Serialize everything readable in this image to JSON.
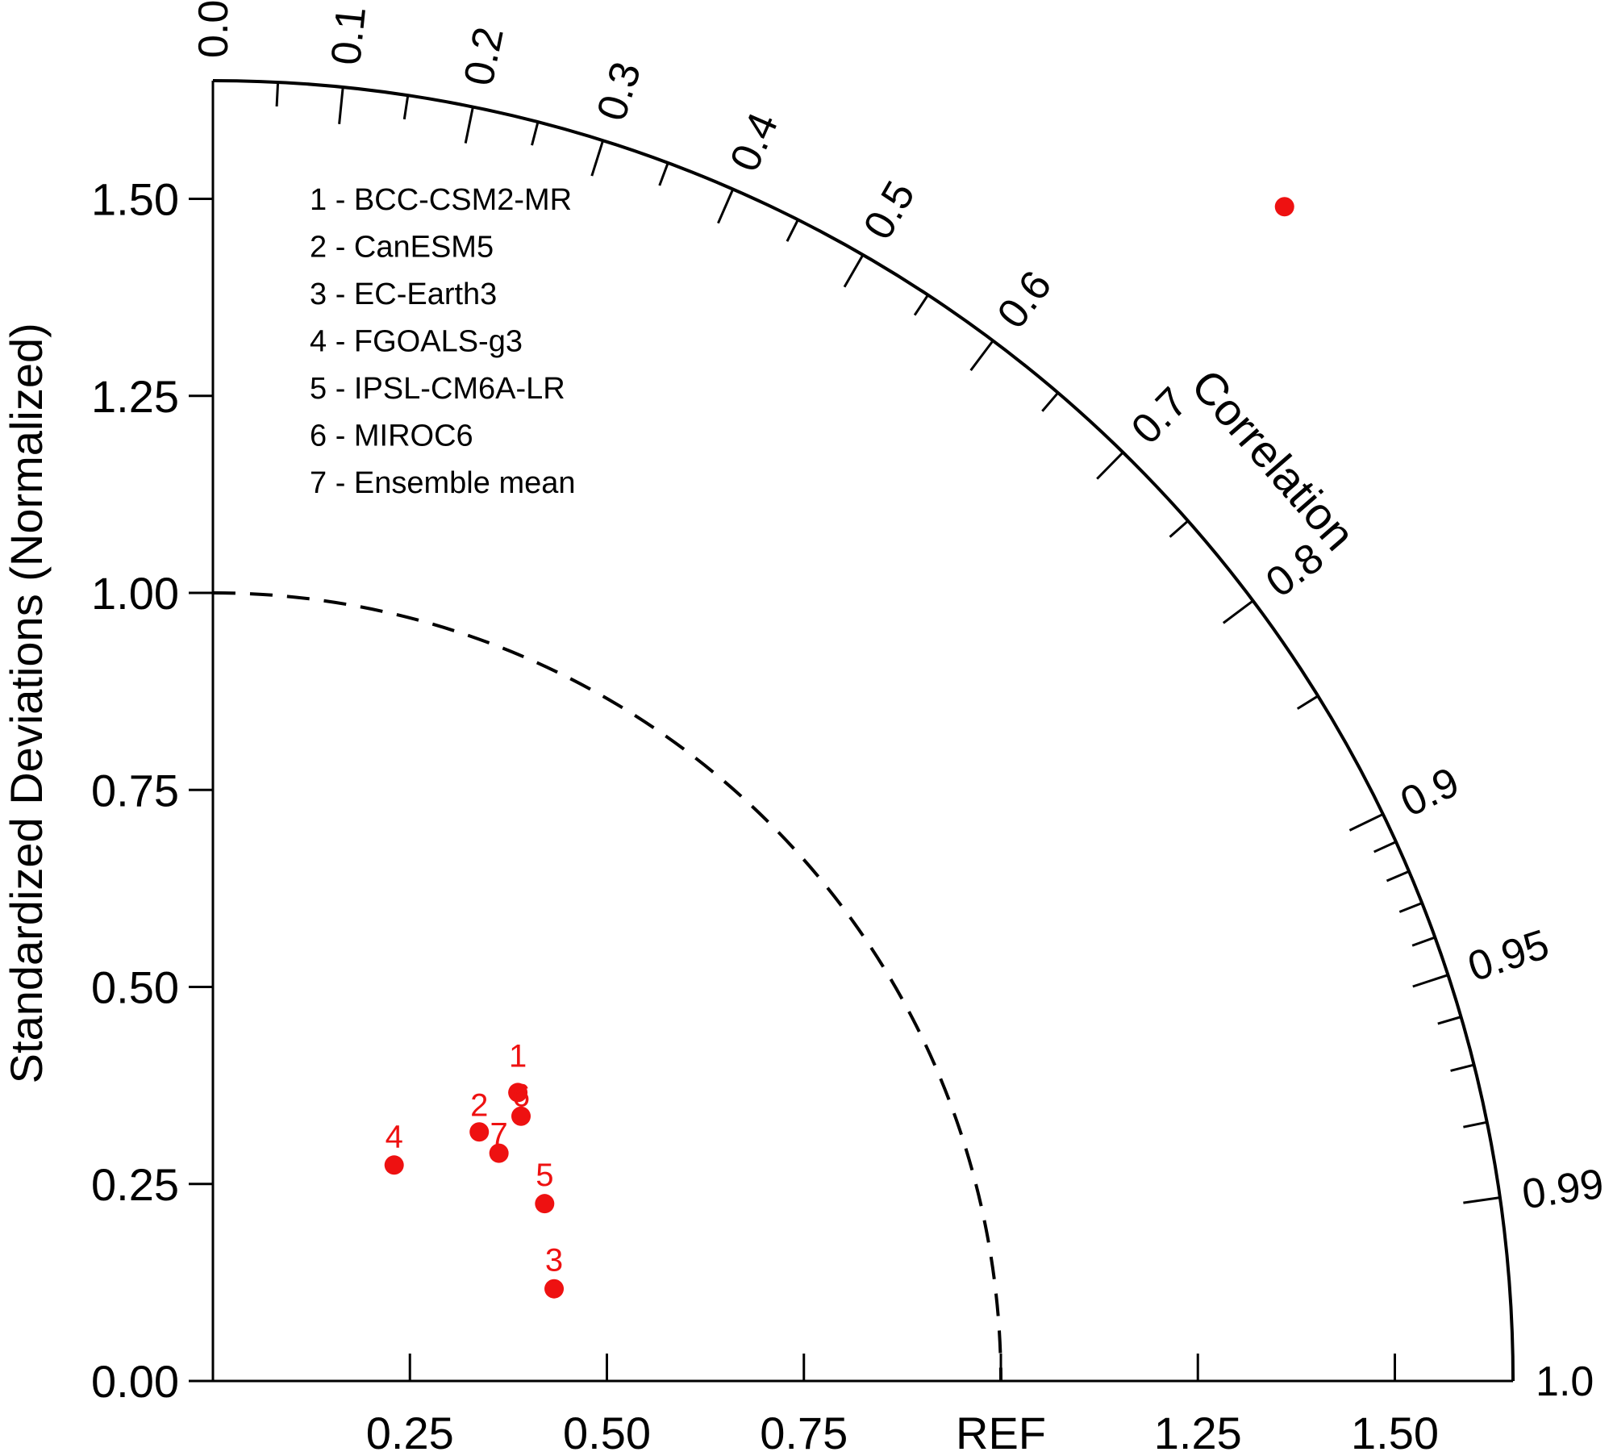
{
  "chart_data": {
    "type": "scatter",
    "subtype": "taylor-diagram",
    "ylabel": "Standardized Deviations (Normalized)",
    "correlation_label": "Correlation",
    "ref_label": "REF",
    "std_range": [
      0,
      1.65
    ],
    "y_ticks": [
      "0.00",
      "0.25",
      "0.50",
      "0.75",
      "1.00",
      "1.25",
      "1.50"
    ],
    "x_ticks": [
      "0.25",
      "0.50",
      "0.75",
      "REF",
      "1.25",
      "1.50"
    ],
    "correlation_ticks": [
      {
        "value": 0.0,
        "label": "0.0"
      },
      {
        "value": 0.1,
        "label": "0.1"
      },
      {
        "value": 0.2,
        "label": "0.2"
      },
      {
        "value": 0.3,
        "label": "0.3"
      },
      {
        "value": 0.4,
        "label": "0.4"
      },
      {
        "value": 0.5,
        "label": "0.5"
      },
      {
        "value": 0.6,
        "label": "0.6"
      },
      {
        "value": 0.7,
        "label": "0.7"
      },
      {
        "value": 0.8,
        "label": "0.8"
      },
      {
        "value": 0.9,
        "label": "0.9"
      },
      {
        "value": 0.95,
        "label": "0.95"
      },
      {
        "value": 0.99,
        "label": "0.99"
      },
      {
        "value": 1.0,
        "label": "1.0"
      }
    ],
    "correlation_minor_ticks": [
      0.05,
      0.15,
      0.25,
      0.35,
      0.45,
      0.55,
      0.65,
      0.75,
      0.85,
      0.91,
      0.92,
      0.93,
      0.94,
      0.96,
      0.97,
      0.98
    ],
    "ref_circle_std": 1.0,
    "legend": [
      "1 - BCC-CSM2-MR",
      "2 - CanESM5",
      "3 - EC-Earth3",
      "4 - FGOALS-g3",
      "5 - IPSL-CM6A-LR",
      "6 - MIROC6",
      "7 - Ensemble mean"
    ],
    "series": [
      {
        "label": "1",
        "x": 0.387,
        "y": 0.366
      },
      {
        "label": "2",
        "x": 0.338,
        "y": 0.316
      },
      {
        "label": "3",
        "x": 0.433,
        "y": 0.117
      },
      {
        "label": "4",
        "x": 0.23,
        "y": 0.274
      },
      {
        "label": "5",
        "x": 0.421,
        "y": 0.225
      },
      {
        "label": "6",
        "x": 0.391,
        "y": 0.336
      },
      {
        "label": "7",
        "x": 0.363,
        "y": 0.289
      }
    ],
    "extra_point": {
      "x": 1.36,
      "y": 1.49
    },
    "marker_color": "#ee1111"
  }
}
